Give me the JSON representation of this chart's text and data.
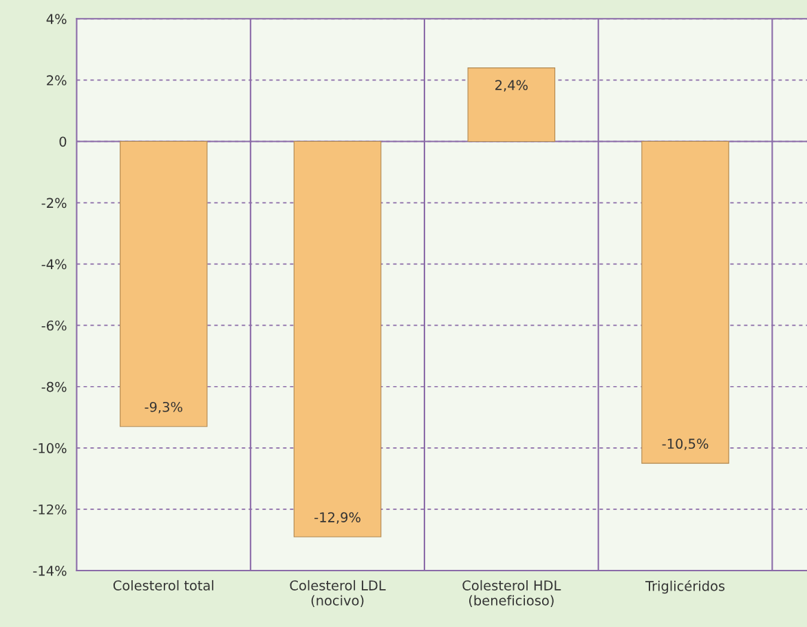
{
  "chart_data": {
    "type": "bar",
    "categories": [
      "Colesterol total",
      "Colesterol LDL\n(nocivo)",
      "Colesterol HDL\n(beneficioso)",
      "Triglicéridos"
    ],
    "values": [
      -9.3,
      -12.9,
      2.4,
      -10.5
    ],
    "value_labels": [
      "-9,3%",
      "-12,9%",
      "2,4%",
      "-10,5%"
    ],
    "color": "#f6c27a",
    "ylim": [
      -14,
      4
    ],
    "yticks": [
      {
        "value": 4,
        "label": "4%"
      },
      {
        "value": 2,
        "label": "2%"
      },
      0,
      {
        "value": -2,
        "label": "-2%"
      },
      {
        "value": -4,
        "label": "-4%"
      },
      {
        "value": -6,
        "label": "-6%"
      },
      {
        "value": -8,
        "label": "-8%"
      },
      {
        "value": -10,
        "label": "-10%"
      },
      {
        "value": -12,
        "label": "-12%"
      },
      {
        "value": -14,
        "label": "-14%"
      }
    ],
    "grid": "y"
  }
}
